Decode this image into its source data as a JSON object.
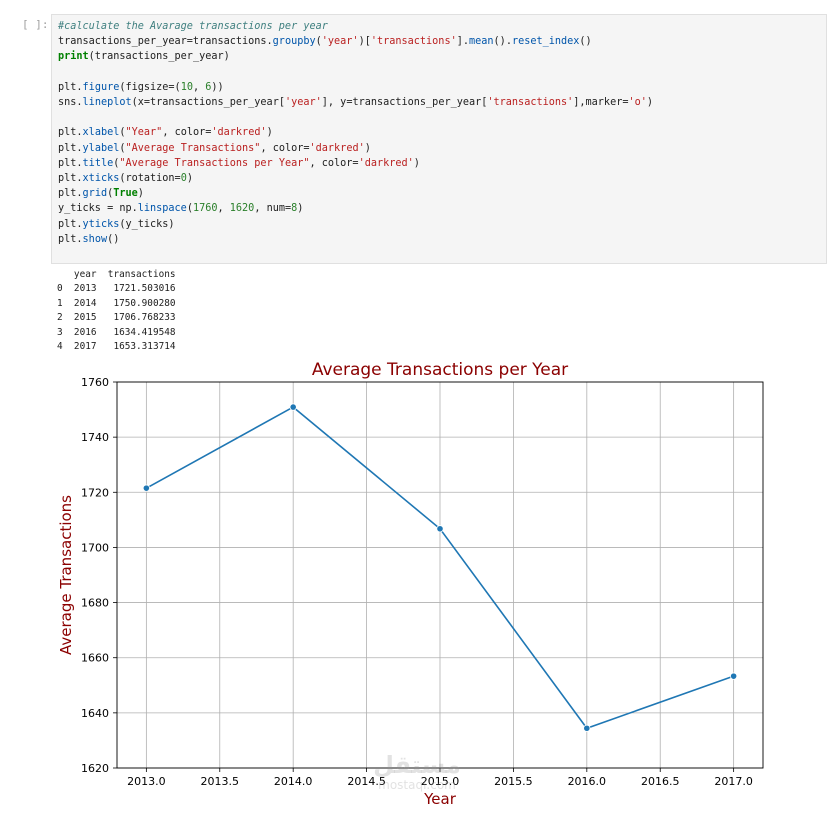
{
  "cell": {
    "prompt": "[ ]:",
    "code": [
      [
        {
          "t": "#calculate the Avarage transactions per year",
          "c": "cm"
        }
      ],
      [
        {
          "t": "transactions_per_year=transactions."
        },
        {
          "t": "groupby",
          "c": "fn"
        },
        {
          "t": "("
        },
        {
          "t": "'year'",
          "c": "st"
        },
        {
          "t": ")["
        },
        {
          "t": "'transactions'",
          "c": "st"
        },
        {
          "t": "]."
        },
        {
          "t": "mean",
          "c": "fn"
        },
        {
          "t": "()."
        },
        {
          "t": "reset_index",
          "c": "fn"
        },
        {
          "t": "()"
        }
      ],
      [
        {
          "t": "print",
          "c": "kw"
        },
        {
          "t": "(transactions_per_year)"
        }
      ],
      [],
      [
        {
          "t": "plt."
        },
        {
          "t": "figure",
          "c": "fn"
        },
        {
          "t": "(figsize=("
        },
        {
          "t": "10",
          "c": "nu"
        },
        {
          "t": ", "
        },
        {
          "t": "6",
          "c": "nu"
        },
        {
          "t": "))"
        }
      ],
      [
        {
          "t": "sns."
        },
        {
          "t": "lineplot",
          "c": "fn"
        },
        {
          "t": "(x=transactions_per_year["
        },
        {
          "t": "'year'",
          "c": "st"
        },
        {
          "t": "], y=transactions_per_year["
        },
        {
          "t": "'transactions'",
          "c": "st"
        },
        {
          "t": "],marker="
        },
        {
          "t": "'o'",
          "c": "st"
        },
        {
          "t": ")"
        }
      ],
      [],
      [
        {
          "t": "plt."
        },
        {
          "t": "xlabel",
          "c": "fn"
        },
        {
          "t": "("
        },
        {
          "t": "\"Year\"",
          "c": "st"
        },
        {
          "t": ", color="
        },
        {
          "t": "'darkred'",
          "c": "st"
        },
        {
          "t": ")"
        }
      ],
      [
        {
          "t": "plt."
        },
        {
          "t": "ylabel",
          "c": "fn"
        },
        {
          "t": "("
        },
        {
          "t": "\"Average Transactions\"",
          "c": "st"
        },
        {
          "t": ", color="
        },
        {
          "t": "'darkred'",
          "c": "st"
        },
        {
          "t": ")"
        }
      ],
      [
        {
          "t": "plt."
        },
        {
          "t": "title",
          "c": "fn"
        },
        {
          "t": "("
        },
        {
          "t": "\"Average Transactions per Year\"",
          "c": "st"
        },
        {
          "t": ", color="
        },
        {
          "t": "'darkred'",
          "c": "st"
        },
        {
          "t": ")"
        }
      ],
      [
        {
          "t": "plt."
        },
        {
          "t": "xticks",
          "c": "fn"
        },
        {
          "t": "(rotation="
        },
        {
          "t": "0",
          "c": "nu"
        },
        {
          "t": ")"
        }
      ],
      [
        {
          "t": "plt."
        },
        {
          "t": "grid",
          "c": "fn"
        },
        {
          "t": "("
        },
        {
          "t": "True",
          "c": "kw"
        },
        {
          "t": ")"
        }
      ],
      [
        {
          "t": "y_ticks = np."
        },
        {
          "t": "linspace",
          "c": "fn"
        },
        {
          "t": "("
        },
        {
          "t": "1760",
          "c": "nu"
        },
        {
          "t": ", "
        },
        {
          "t": "1620",
          "c": "nu"
        },
        {
          "t": ", num="
        },
        {
          "t": "8",
          "c": "nu"
        },
        {
          "t": ")"
        }
      ],
      [
        {
          "t": "plt."
        },
        {
          "t": "yticks",
          "c": "fn"
        },
        {
          "t": "(y_ticks)"
        }
      ],
      [
        {
          "t": "plt."
        },
        {
          "t": "show",
          "c": "fn"
        },
        {
          "t": "()"
        }
      ]
    ]
  },
  "output": {
    "text": "   year  transactions\n0  2013   1721.503016\n1  2014   1750.900280\n2  2015   1706.768233\n3  2016   1634.419548\n4  2017   1653.313714"
  },
  "chart_data": {
    "type": "line",
    "title": "Average Transactions per Year",
    "xlabel": "Year",
    "ylabel": "Average Transactions",
    "label_color": "#8b0000",
    "line_color": "#1f77b4",
    "grid": true,
    "x": [
      2013,
      2014,
      2015,
      2016,
      2017
    ],
    "series": [
      {
        "values": [
          1721.503016,
          1750.90028,
          1706.768233,
          1634.419548,
          1653.313714
        ]
      }
    ],
    "xlim": [
      2012.8,
      2017.2
    ],
    "ylim": [
      1620,
      1760
    ],
    "xticks": [
      "2013.0",
      "2013.5",
      "2014.0",
      "2014.5",
      "2015.0",
      "2015.5",
      "2016.0",
      "2016.5",
      "2017.0"
    ],
    "yticks": [
      "1620",
      "1640",
      "1660",
      "1680",
      "1700",
      "1720",
      "1740",
      "1760"
    ]
  },
  "watermark": {
    "line1": "مستقل",
    "line2": "mostaql.com"
  }
}
